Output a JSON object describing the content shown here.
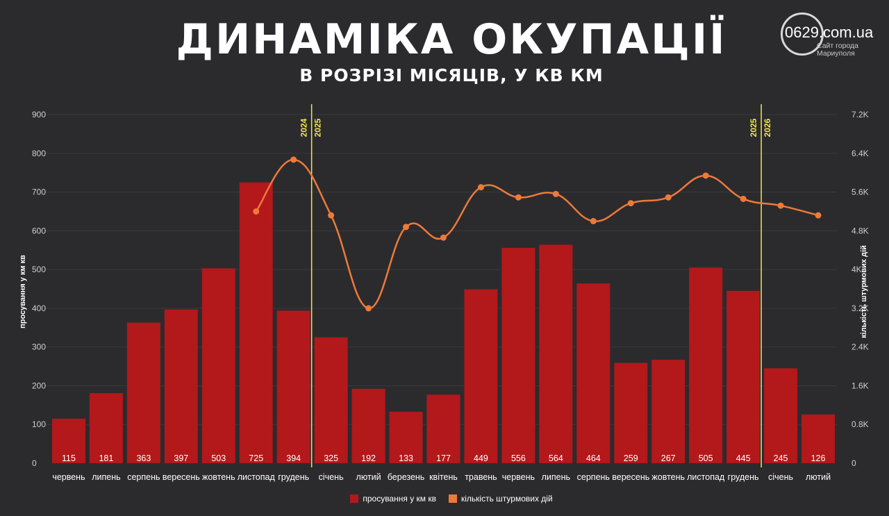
{
  "header": {
    "title": "ДИНАМІКА ОКУПАЦІЇ",
    "subtitle": "В РОЗРІЗІ МІСЯЦІВ, У КВ КМ"
  },
  "logo": {
    "name": "0629.com.ua",
    "tagline_1": "Сайт города",
    "tagline_2": "Мариуполя"
  },
  "colors": {
    "background": "#2b2b2e",
    "bar": "#b3181b",
    "line": "#ee7a3a",
    "year_divider": "#f3e64a"
  },
  "legend": {
    "bars_label": "просування у км кв",
    "line_label": "кількість штурмових дій"
  },
  "chart_data": {
    "type": "bar",
    "ylabel": "просування у км кв",
    "y2label": "кількість штурмових дій",
    "ylim": [
      0,
      900
    ],
    "y_ticks": [
      "0",
      "100",
      "200",
      "300",
      "400",
      "500",
      "600",
      "700",
      "800",
      "900"
    ],
    "y2lim": [
      0,
      7200
    ],
    "y2_ticks": [
      "0",
      "0.8K",
      "1.6K",
      "2.4K",
      "3.2K",
      "4K",
      "4.8K",
      "5.6K",
      "6.4K",
      "7.2K"
    ],
    "categories": [
      "червень",
      "липень",
      "серпень",
      "вересень",
      "жовтень",
      "листопад",
      "грудень",
      "січень",
      "лютий",
      "березень",
      "квітень",
      "травень",
      "червень",
      "липень",
      "серпень",
      "вересень",
      "жовтень",
      "листопад",
      "грудень",
      "січень",
      "лютий"
    ],
    "series": [
      {
        "name": "просування у км кв",
        "type": "bar",
        "values": [
          115,
          181,
          363,
          397,
          503,
          725,
          394,
          325,
          192,
          133,
          177,
          449,
          556,
          564,
          464,
          259,
          267,
          505,
          445,
          245,
          126
        ],
        "labels": [
          "115",
          "181",
          "363",
          "397",
          "503",
          "725",
          "394",
          "325",
          "192",
          "133",
          "177",
          "449",
          "556",
          "564",
          "464",
          "259",
          "267",
          "505",
          "445",
          "245",
          "126"
        ]
      },
      {
        "name": "кількість штурмових дій",
        "type": "line",
        "axis": "right",
        "values": [
          null,
          null,
          null,
          null,
          null,
          5200,
          6270,
          5120,
          3200,
          4880,
          4660,
          5700,
          5490,
          5560,
          5000,
          5370,
          5490,
          5940,
          5460,
          5320,
          5120
        ]
      }
    ],
    "year_dividers": [
      {
        "after_index": 6,
        "labels": [
          "2024",
          "2025"
        ]
      },
      {
        "after_index": 18,
        "labels": [
          "2025",
          "2026"
        ]
      }
    ],
    "grid": true,
    "legend_position": "bottom"
  }
}
